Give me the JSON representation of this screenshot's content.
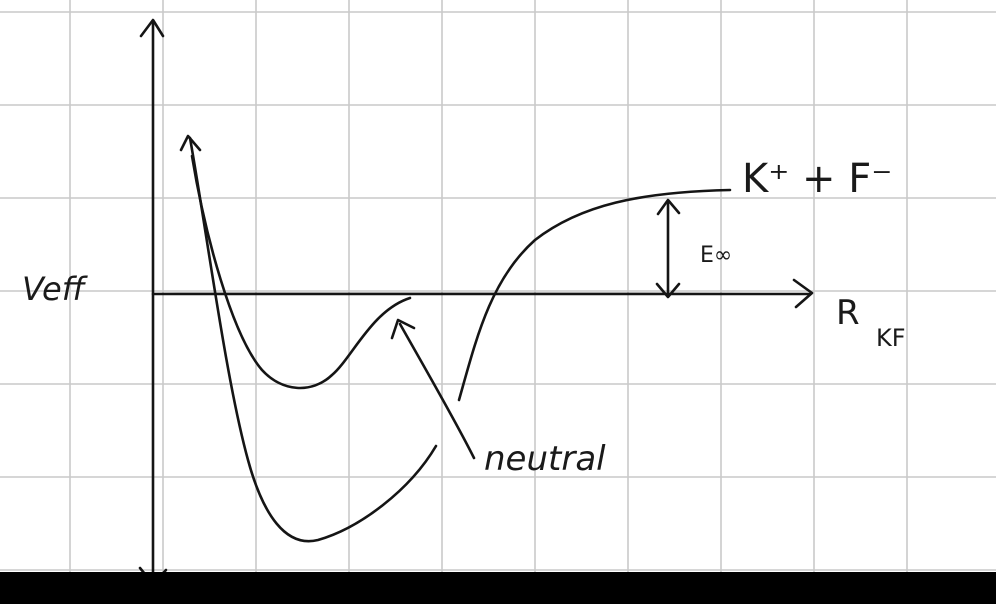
{
  "diagram": {
    "y_axis_label": "Veff",
    "x_axis_label_main": "R",
    "x_axis_label_sub": "KF",
    "asymptote_label": "K⁺ + F⁻",
    "gap_label": "E∞",
    "curve_label": "neutral"
  },
  "colors": {
    "ink": "#151515",
    "grid": "#c9c9c9",
    "background": "#ffffff",
    "bottom_bar": "#000000"
  }
}
